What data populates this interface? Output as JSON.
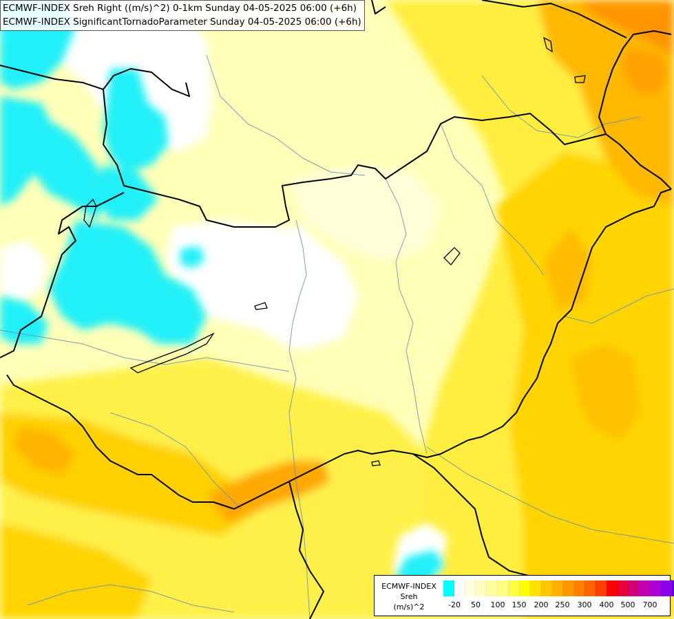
{
  "header": {
    "line1": "ECMWF-INDEX Sreh Right ((m/s)^2) 0-1km Sunday 04-05-2025 06:00 (+6h)",
    "line2": "ECMWF-INDEX SignificantTornadoParameter Sunday 04-05-2025 06:00 (+6h)"
  },
  "legend": {
    "title_lines": [
      "ECMWF-INDEX",
      "Sreh",
      "(m/s)^2"
    ],
    "colors": [
      "#00ffff",
      "#ffffff",
      "#ffffe0",
      "#ffffc0",
      "#ffffa0",
      "#ffff80",
      "#ffff40",
      "#ffff00",
      "#ffe000",
      "#ffc800",
      "#ffb000",
      "#ff9800",
      "#ff8000",
      "#ff6400",
      "#ff4000",
      "#ff0000",
      "#e8003c",
      "#d0007c",
      "#c000b0",
      "#b000d8",
      "#8c00e8",
      "#6400d8",
      "#3c00c0",
      "#0000a0"
    ],
    "ticks": [
      "-20",
      "50",
      "100",
      "150",
      "200",
      "250",
      "300",
      "400",
      "500",
      "700"
    ]
  },
  "map": {
    "field_levels": [
      "-20",
      "0",
      "50",
      "100",
      "150",
      "200"
    ],
    "borders_shown": true,
    "rivers_shown": true
  }
}
